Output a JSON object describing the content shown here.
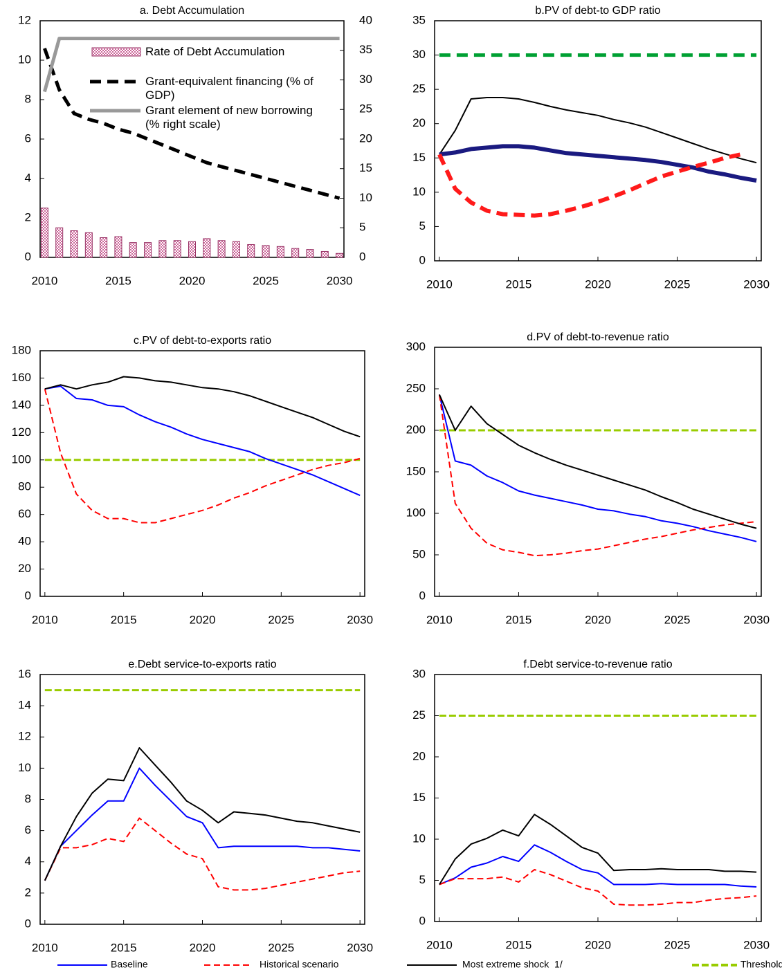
{
  "chart_data": [
    {
      "type": "combo",
      "title": "a. Debt Accumulation",
      "x": [
        2010,
        2011,
        2012,
        2013,
        2014,
        2015,
        2016,
        2017,
        2018,
        2019,
        2020,
        2021,
        2022,
        2023,
        2024,
        2025,
        2026,
        2027,
        2028,
        2029,
        2030
      ],
      "xlim": [
        2009.7,
        2030.3
      ],
      "xticks": [
        2010,
        2015,
        2020,
        2025,
        2030
      ],
      "ylim": [
        0,
        12
      ],
      "yticks": [
        0,
        2,
        4,
        6,
        8,
        10,
        12
      ],
      "y2lim": [
        0,
        40
      ],
      "y2ticks": [
        0,
        5,
        10,
        15,
        20,
        25,
        30,
        35,
        40
      ],
      "series": [
        {
          "name": "Rate of Debt Accumulation",
          "type": "bar",
          "color": "#993366",
          "values": [
            2.5,
            1.5,
            1.35,
            1.25,
            1.0,
            1.05,
            0.75,
            0.75,
            0.85,
            0.85,
            0.8,
            0.95,
            0.85,
            0.8,
            0.65,
            0.6,
            0.55,
            0.45,
            0.4,
            0.3,
            0.2
          ]
        },
        {
          "name": "Grant-equivalent financing (% of GDP)",
          "type": "line",
          "color": "#000000",
          "dash": true,
          "width": 5,
          "values": [
            10.6,
            8.5,
            7.3,
            7.0,
            6.8,
            6.5,
            6.3,
            6.0,
            5.7,
            5.4,
            5.1,
            4.8,
            4.6,
            4.4,
            4.2,
            4.0,
            3.8,
            3.6,
            3.4,
            3.2,
            3.0
          ]
        },
        {
          "name": "Grant element of new borrowing (% right scale)",
          "type": "line",
          "color": "#999999",
          "width": 5,
          "axis": "y2",
          "values": [
            28,
            37,
            37,
            37,
            37,
            37,
            37,
            37,
            37,
            37,
            37,
            37,
            37,
            37,
            37,
            37,
            37,
            37,
            37,
            37,
            37
          ]
        }
      ]
    },
    {
      "type": "line",
      "title": "b.PV of debt-to GDP ratio",
      "x": [
        2010,
        2011,
        2012,
        2013,
        2014,
        2015,
        2016,
        2017,
        2018,
        2019,
        2020,
        2021,
        2022,
        2023,
        2024,
        2025,
        2026,
        2027,
        2028,
        2029,
        2030
      ],
      "xlim": [
        2009.7,
        2030.3
      ],
      "xticks": [
        2010,
        2015,
        2020,
        2025,
        2030
      ],
      "ylim": [
        0,
        35
      ],
      "yticks": [
        0,
        5,
        10,
        15,
        20,
        25,
        30,
        35
      ],
      "series": [
        {
          "color": "#00a033",
          "dash": true,
          "width": 5,
          "values": [
            30,
            30,
            30,
            30,
            30,
            30,
            30,
            30,
            30,
            30,
            30,
            30,
            30,
            30,
            30,
            30,
            30,
            30,
            30,
            30,
            30
          ]
        },
        {
          "color": "#000000",
          "width": 2,
          "values": [
            15.5,
            19.0,
            23.6,
            23.8,
            23.8,
            23.6,
            23.1,
            22.5,
            22.0,
            21.6,
            21.2,
            20.6,
            20.1,
            19.5,
            18.7,
            17.9,
            17.1,
            16.3,
            15.6,
            14.9,
            14.3
          ]
        },
        {
          "color": "#1a1a80",
          "width": 6,
          "values": [
            15.5,
            15.8,
            16.3,
            16.5,
            16.7,
            16.7,
            16.5,
            16.1,
            15.7,
            15.5,
            15.3,
            15.1,
            14.9,
            14.7,
            14.4,
            14.0,
            13.6,
            13.0,
            12.6,
            12.1,
            11.7
          ]
        },
        {
          "color": "#ff1a1a",
          "dash": true,
          "width": 6,
          "values": [
            15.5,
            10.5,
            8.5,
            7.3,
            6.8,
            6.7,
            6.6,
            6.8,
            7.3,
            7.9,
            8.6,
            9.4,
            10.3,
            11.3,
            12.3,
            13.0,
            13.7,
            14.3,
            15.0,
            15.5,
            null
          ]
        }
      ]
    },
    {
      "type": "line",
      "title": "c.PV of debt-to-exports ratio",
      "x": [
        2010,
        2011,
        2012,
        2013,
        2014,
        2015,
        2016,
        2017,
        2018,
        2019,
        2020,
        2021,
        2022,
        2023,
        2024,
        2025,
        2026,
        2027,
        2028,
        2029,
        2030
      ],
      "xlim": [
        2009.7,
        2030.3
      ],
      "xticks": [
        2010,
        2015,
        2020,
        2025,
        2030
      ],
      "ylim": [
        0,
        180
      ],
      "yticks": [
        0,
        20,
        40,
        60,
        80,
        100,
        120,
        140,
        160,
        180
      ],
      "series": [
        {
          "color": "#99cc00",
          "dash": true,
          "width": 3,
          "values": [
            100,
            100,
            100,
            100,
            100,
            100,
            100,
            100,
            100,
            100,
            100,
            100,
            100,
            100,
            100,
            100,
            100,
            100,
            100,
            100,
            100
          ]
        },
        {
          "color": "#0000ff",
          "width": 2,
          "values": [
            152,
            154,
            145,
            144,
            140,
            139,
            133,
            128,
            124,
            119,
            115,
            112,
            109,
            106,
            101,
            97,
            93,
            89,
            84,
            79,
            74
          ]
        },
        {
          "color": "#ff0000",
          "dash": true,
          "width": 2,
          "values": [
            152,
            105,
            75,
            63,
            57,
            57,
            54,
            54,
            57,
            60,
            63,
            67,
            72,
            76,
            81,
            85,
            89,
            93,
            96,
            98,
            101
          ]
        },
        {
          "color": "#000000",
          "width": 2,
          "values": [
            152,
            155,
            152,
            155,
            157,
            161,
            160,
            158,
            157,
            155,
            153,
            152,
            150,
            147,
            143,
            139,
            135,
            131,
            126,
            121,
            117
          ]
        }
      ]
    },
    {
      "type": "line",
      "title": "d.PV of debt-to-revenue ratio",
      "x": [
        2010,
        2011,
        2012,
        2013,
        2014,
        2015,
        2016,
        2017,
        2018,
        2019,
        2020,
        2021,
        2022,
        2023,
        2024,
        2025,
        2026,
        2027,
        2028,
        2029,
        2030
      ],
      "xlim": [
        2009.7,
        2030.3
      ],
      "xticks": [
        2010,
        2015,
        2020,
        2025,
        2030
      ],
      "ylim": [
        0,
        300
      ],
      "yticks": [
        0,
        50,
        100,
        150,
        200,
        250,
        300
      ],
      "series": [
        {
          "color": "#99cc00",
          "dash": true,
          "width": 3,
          "values": [
            200,
            200,
            200,
            200,
            200,
            200,
            200,
            200,
            200,
            200,
            200,
            200,
            200,
            200,
            200,
            200,
            200,
            200,
            200,
            200,
            200
          ]
        },
        {
          "color": "#0000ff",
          "width": 2,
          "values": [
            243,
            163,
            158,
            145,
            137,
            127,
            122,
            118,
            114,
            110,
            105,
            103,
            99,
            96,
            91,
            88,
            84,
            79,
            75,
            71,
            66
          ]
        },
        {
          "color": "#ff0000",
          "dash": true,
          "width": 2,
          "values": [
            243,
            112,
            82,
            64,
            56,
            53,
            49,
            50,
            52,
            55,
            57,
            61,
            65,
            69,
            72,
            76,
            80,
            83,
            86,
            88,
            90
          ]
        },
        {
          "color": "#000000",
          "width": 2,
          "values": [
            243,
            200,
            229,
            208,
            195,
            182,
            173,
            165,
            158,
            152,
            146,
            140,
            134,
            128,
            120,
            113,
            105,
            99,
            93,
            87,
            82
          ]
        }
      ]
    },
    {
      "type": "line",
      "title": "e.Debt service-to-exports ratio",
      "x": [
        2010,
        2011,
        2012,
        2013,
        2014,
        2015,
        2016,
        2017,
        2018,
        2019,
        2020,
        2021,
        2022,
        2023,
        2024,
        2025,
        2026,
        2027,
        2028,
        2029,
        2030
      ],
      "xlim": [
        2009.7,
        2030.3
      ],
      "xticks": [
        2010,
        2015,
        2020,
        2025,
        2030
      ],
      "ylim": [
        0,
        16
      ],
      "yticks": [
        0,
        2,
        4,
        6,
        8,
        10,
        12,
        14,
        16
      ],
      "series": [
        {
          "color": "#99cc00",
          "dash": true,
          "width": 3,
          "values": [
            15,
            15,
            15,
            15,
            15,
            15,
            15,
            15,
            15,
            15,
            15,
            15,
            15,
            15,
            15,
            15,
            15,
            15,
            15,
            15,
            15
          ]
        },
        {
          "color": "#0000ff",
          "width": 2,
          "values": [
            2.8,
            5.0,
            6.0,
            7.0,
            7.9,
            7.9,
            10.0,
            8.9,
            7.9,
            6.9,
            6.5,
            4.9,
            5.0,
            5.0,
            5.0,
            5.0,
            5.0,
            4.9,
            4.9,
            4.8,
            4.7
          ]
        },
        {
          "color": "#ff0000",
          "dash": true,
          "width": 2,
          "values": [
            2.8,
            4.9,
            4.9,
            5.1,
            5.5,
            5.3,
            6.8,
            6.0,
            5.2,
            4.5,
            4.2,
            2.4,
            2.2,
            2.2,
            2.3,
            2.5,
            2.7,
            2.9,
            3.1,
            3.3,
            3.4
          ]
        },
        {
          "color": "#000000",
          "width": 2,
          "values": [
            2.8,
            5.0,
            6.9,
            8.4,
            9.3,
            9.2,
            11.3,
            10.2,
            9.1,
            7.9,
            7.3,
            6.5,
            7.2,
            7.1,
            7.0,
            6.8,
            6.6,
            6.5,
            6.3,
            6.1,
            5.9
          ]
        }
      ]
    },
    {
      "type": "line",
      "title": "f.Debt service-to-revenue ratio",
      "x": [
        2010,
        2011,
        2012,
        2013,
        2014,
        2015,
        2016,
        2017,
        2018,
        2019,
        2020,
        2021,
        2022,
        2023,
        2024,
        2025,
        2026,
        2027,
        2028,
        2029,
        2030
      ],
      "xlim": [
        2009.7,
        2030.3
      ],
      "xticks": [
        2010,
        2015,
        2020,
        2025,
        2030
      ],
      "ylim": [
        0,
        30
      ],
      "yticks": [
        0,
        5,
        10,
        15,
        20,
        25,
        30
      ],
      "series": [
        {
          "color": "#99cc00",
          "dash": true,
          "width": 3,
          "values": [
            25,
            25,
            25,
            25,
            25,
            25,
            25,
            25,
            25,
            25,
            25,
            25,
            25,
            25,
            25,
            25,
            25,
            25,
            25,
            25,
            25
          ]
        },
        {
          "color": "#0000ff",
          "width": 2,
          "values": [
            4.5,
            5.3,
            6.6,
            7.1,
            7.9,
            7.3,
            9.3,
            8.4,
            7.3,
            6.3,
            5.9,
            4.5,
            4.5,
            4.5,
            4.6,
            4.5,
            4.5,
            4.5,
            4.5,
            4.3,
            4.2
          ]
        },
        {
          "color": "#ff0000",
          "dash": true,
          "width": 2,
          "values": [
            4.5,
            5.2,
            5.2,
            5.2,
            5.4,
            4.8,
            6.3,
            5.7,
            4.9,
            4.1,
            3.7,
            2.1,
            2.0,
            2.0,
            2.1,
            2.3,
            2.3,
            2.6,
            2.8,
            2.9,
            3.1
          ]
        },
        {
          "color": "#000000",
          "width": 2,
          "values": [
            4.5,
            7.6,
            9.4,
            10.1,
            11.1,
            10.4,
            13.0,
            11.8,
            10.4,
            9.0,
            8.3,
            6.2,
            6.3,
            6.3,
            6.4,
            6.3,
            6.3,
            6.3,
            6.1,
            6.1,
            6.0
          ]
        }
      ]
    }
  ],
  "legend": [
    {
      "name": "Baseline",
      "color": "#0000ff",
      "width": 2
    },
    {
      "name": "Historical scenario",
      "color": "#ff0000",
      "dash": true,
      "width": 2
    },
    {
      "name": "Most extreme shock  1/",
      "color": "#000000",
      "width": 2
    },
    {
      "name": "Threshold",
      "color": "#99cc00",
      "dash": true,
      "width": 4
    }
  ]
}
